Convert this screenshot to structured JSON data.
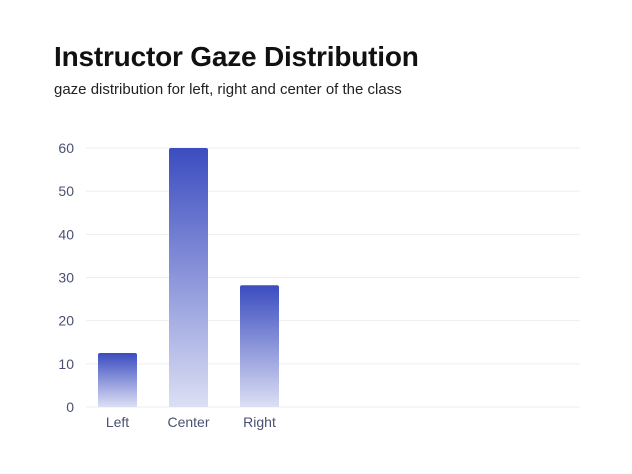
{
  "chart_data": {
    "type": "bar",
    "title": "Instructor Gaze Distribution",
    "subtitle": "gaze distribution for left, right and center of the class",
    "categories": [
      "Left",
      "Center",
      "Right"
    ],
    "values": [
      12.5,
      60,
      28.2
    ],
    "xlabel": "",
    "ylabel": "",
    "ylim": [
      0,
      60
    ],
    "yticks": [
      0,
      10,
      20,
      30,
      40,
      50,
      60
    ],
    "grid": true,
    "legend": "none",
    "colors": {
      "bar_top": "#3b4cc0",
      "bar_bottom": "#dcdff4",
      "grid": "#eeeeee",
      "tick_text": "#4a5170"
    }
  }
}
